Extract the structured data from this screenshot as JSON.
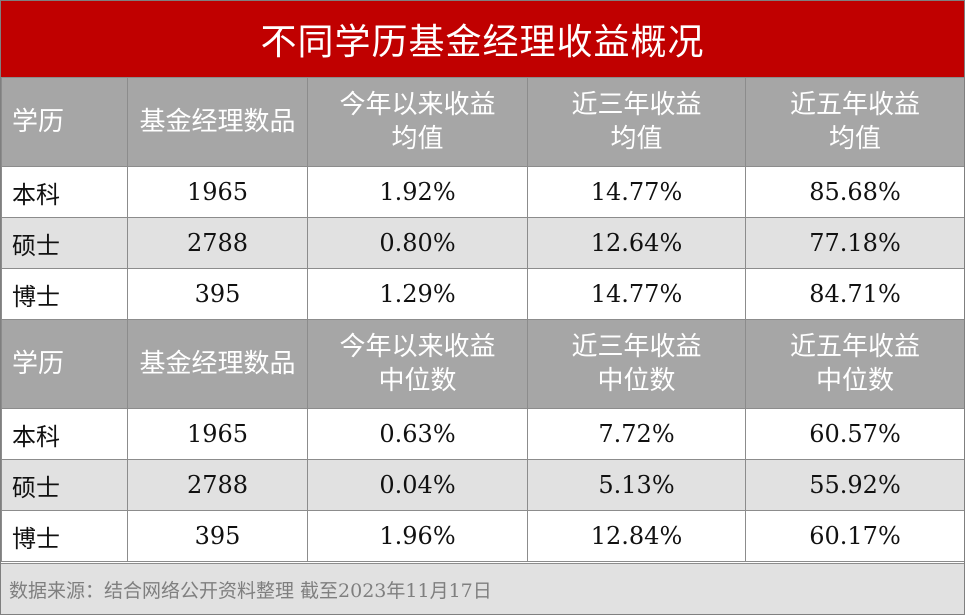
{
  "title": "不同学历基金经理收益概况",
  "sections": [
    {
      "header": [
        {
          "line1": "学历",
          "line2": ""
        },
        {
          "line1": "基金经理数品",
          "line2": ""
        },
        {
          "line1": "今年以来收益",
          "line2": "均值"
        },
        {
          "line1": "近三年收益",
          "line2": "均值"
        },
        {
          "line1": "近五年收益",
          "line2": "均值"
        }
      ],
      "rows": [
        {
          "education": "本科",
          "count": "1965",
          "ytd": "1.92%",
          "y3": "14.77%",
          "y5": "85.68%"
        },
        {
          "education": "硕士",
          "count": "2788",
          "ytd": "0.80%",
          "y3": "12.64%",
          "y5": "77.18%"
        },
        {
          "education": "博士",
          "count": "395",
          "ytd": "1.29%",
          "y3": "14.77%",
          "y5": "84.71%"
        }
      ]
    },
    {
      "header": [
        {
          "line1": "学历",
          "line2": ""
        },
        {
          "line1": "基金经理数品",
          "line2": ""
        },
        {
          "line1": "今年以来收益",
          "line2": "中位数"
        },
        {
          "line1": "近三年收益",
          "line2": "中位数"
        },
        {
          "line1": "近五年收益",
          "line2": "中位数"
        }
      ],
      "rows": [
        {
          "education": "本科",
          "count": "1965",
          "ytd": "0.63%",
          "y3": "7.72%",
          "y5": "60.57%"
        },
        {
          "education": "硕士",
          "count": "2788",
          "ytd": "0.04%",
          "y3": "5.13%",
          "y5": "55.92%"
        },
        {
          "education": "博士",
          "count": "395",
          "ytd": "1.96%",
          "y3": "12.84%",
          "y5": "60.17%"
        }
      ]
    }
  ],
  "footer": "数据来源：结合网络公开资料整理  截至2023年11月17日",
  "colors": {
    "title_bg": "#c00000",
    "header_bg": "#a6a6a6",
    "shaded_row_bg": "#e1e1e1",
    "footer_text": "#7f7f7f"
  }
}
